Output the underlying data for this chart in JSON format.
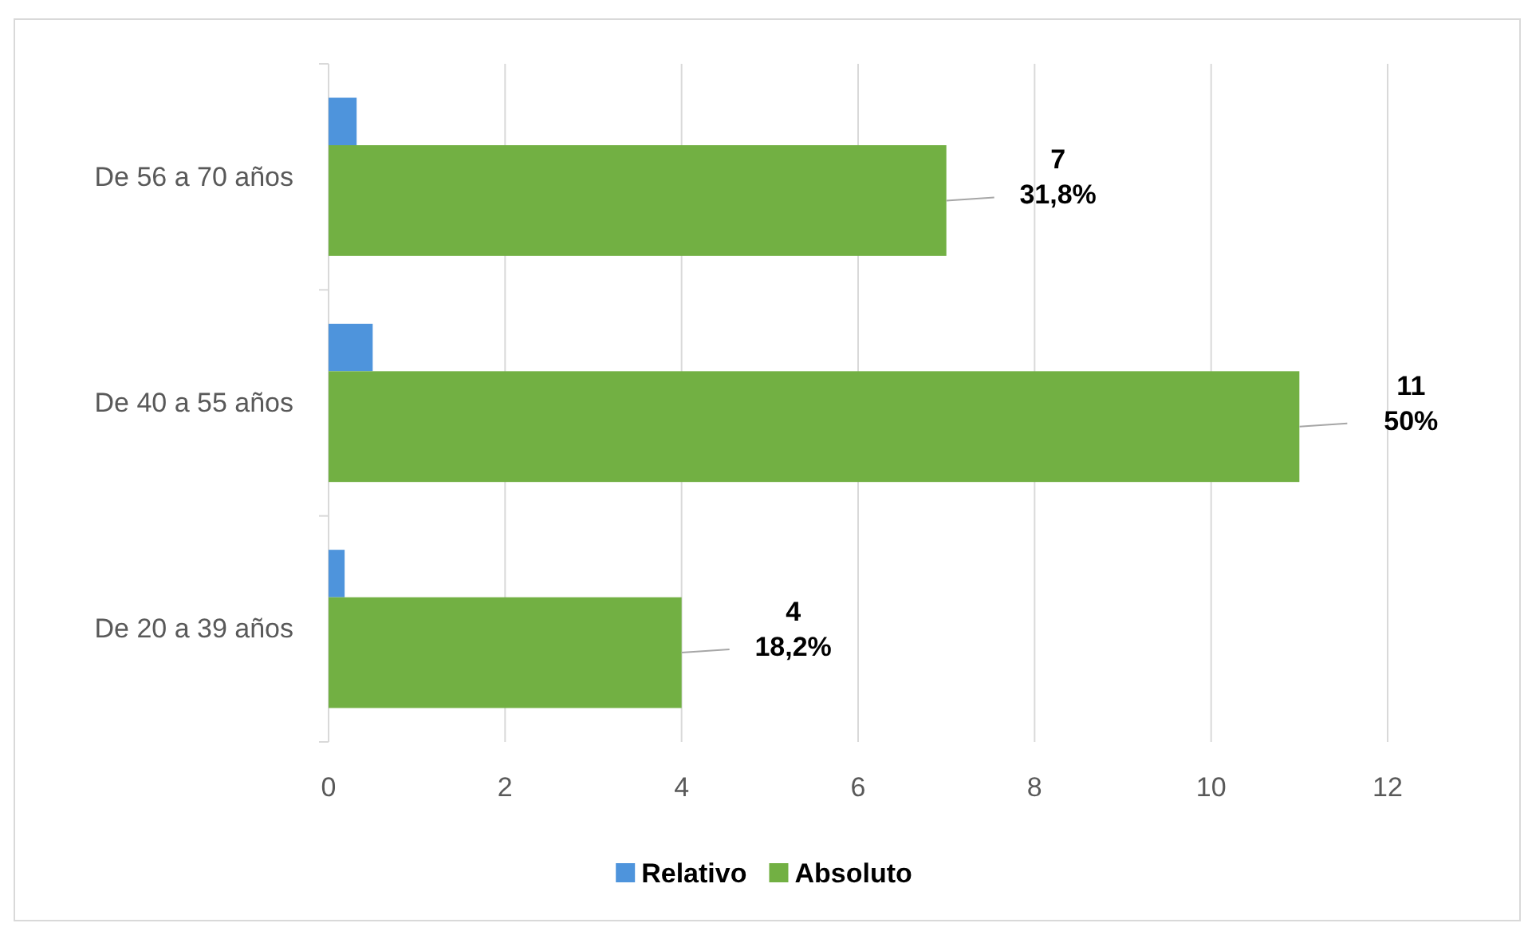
{
  "chart_data": {
    "type": "bar",
    "orientation": "horizontal",
    "categories": [
      "De 56 a 70 años",
      "De 40 a 55 años",
      "De 20 a 39 años"
    ],
    "series": [
      {
        "name": "Relativo",
        "color": "#4e94dc",
        "values": [
          0.318,
          0.5,
          0.182
        ]
      },
      {
        "name": "Absoluto",
        "color": "#72b043",
        "values": [
          7,
          11,
          4
        ],
        "value_labels": [
          "7\n31,8%",
          "11\n50%",
          "4\n18,2%"
        ]
      }
    ],
    "xlim": [
      0,
      12
    ],
    "xticks": [
      0,
      2,
      4,
      6,
      8,
      10,
      12
    ],
    "grid": "x",
    "legend": "bottom"
  }
}
